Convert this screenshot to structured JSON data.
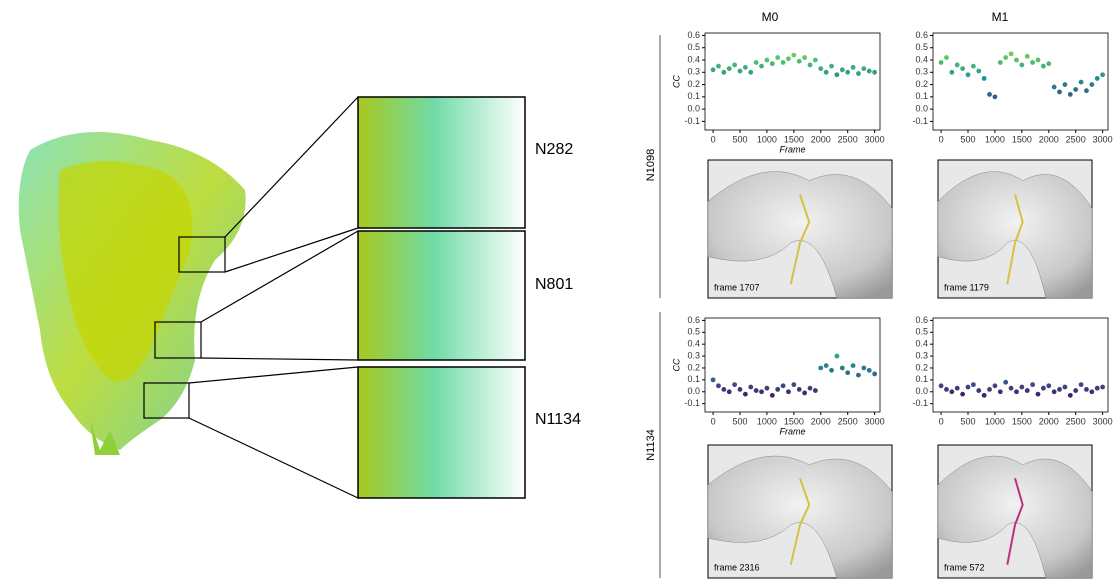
{
  "figure": {
    "column_headers": [
      "M0",
      "M1"
    ],
    "row_headers": [
      "N1098",
      "N1134"
    ],
    "sites": [
      "N282",
      "N801",
      "N1134"
    ],
    "snapshots": [
      "frame 1707",
      "frame 1179",
      "frame 2316",
      "frame 572"
    ]
  },
  "chart_data": [
    {
      "type": "scatter",
      "ylabel": "CC",
      "xlabel": "Frame",
      "colormap": "viridis",
      "clim": [
        -0.1,
        0.6
      ],
      "x": [
        0,
        100,
        200,
        300,
        400,
        500,
        600,
        700,
        800,
        900,
        1000,
        1100,
        1200,
        1300,
        1400,
        1500,
        1600,
        1700,
        1800,
        1900,
        2000,
        2100,
        2200,
        2300,
        2400,
        2500,
        2600,
        2700,
        2800,
        2900,
        3000
      ],
      "values": [
        0.32,
        0.35,
        0.3,
        0.33,
        0.36,
        0.31,
        0.34,
        0.3,
        0.38,
        0.35,
        0.4,
        0.37,
        0.42,
        0.38,
        0.41,
        0.44,
        0.39,
        0.42,
        0.36,
        0.4,
        0.33,
        0.3,
        0.35,
        0.28,
        0.32,
        0.3,
        0.34,
        0.29,
        0.33,
        0.31,
        0.3
      ],
      "xlim": [
        -150,
        3100
      ],
      "ylim": [
        -0.17,
        0.62
      ],
      "xticks": [
        0,
        500,
        1000,
        1500,
        2000,
        2500,
        3000
      ],
      "yticks": [
        {
          "value": -0.1,
          "label": "-0.1"
        },
        {
          "value": 0,
          "label": "0.0"
        },
        0.1,
        0.2,
        0.3,
        0.4,
        0.5,
        0.6
      ]
    },
    {
      "type": "scatter",
      "colormap": "viridis",
      "clim": [
        -0.1,
        0.6
      ],
      "x": [
        0,
        100,
        200,
        300,
        400,
        500,
        600,
        700,
        800,
        900,
        1000,
        1100,
        1200,
        1300,
        1400,
        1500,
        1600,
        1700,
        1800,
        1900,
        2000,
        2100,
        2200,
        2300,
        2400,
        2500,
        2600,
        2700,
        2800,
        2900,
        3000
      ],
      "values": [
        0.38,
        0.42,
        0.3,
        0.36,
        0.33,
        0.28,
        0.35,
        0.31,
        0.25,
        0.12,
        0.1,
        0.38,
        0.42,
        0.45,
        0.4,
        0.36,
        0.43,
        0.38,
        0.4,
        0.35,
        0.37,
        0.18,
        0.14,
        0.2,
        0.12,
        0.16,
        0.22,
        0.15,
        0.2,
        0.25,
        0.28
      ],
      "xlim": [
        -150,
        3100
      ],
      "ylim": [
        -0.17,
        0.62
      ],
      "xticks": [
        0,
        500,
        1000,
        1500,
        2000,
        2500,
        3000
      ],
      "yticks": [
        {
          "value": -0.1,
          "label": "-0.1"
        },
        {
          "value": 0,
          "label": "0.0"
        },
        0.1,
        0.2,
        0.3,
        0.4,
        0.5,
        0.6
      ]
    },
    {
      "type": "scatter",
      "ylabel": "CC",
      "xlabel": "Frame",
      "colormap": "viridis",
      "clim": [
        -0.1,
        0.6
      ],
      "x": [
        0,
        100,
        200,
        300,
        400,
        500,
        600,
        700,
        800,
        900,
        1000,
        1100,
        1200,
        1300,
        1400,
        1500,
        1600,
        1700,
        1800,
        1900,
        2000,
        2100,
        2200,
        2300,
        2400,
        2500,
        2600,
        2700,
        2800,
        2900,
        3000
      ],
      "values": [
        0.1,
        0.05,
        0.02,
        0.0,
        0.06,
        0.02,
        -0.02,
        0.04,
        0.01,
        0.0,
        0.03,
        -0.03,
        0.02,
        0.05,
        0.0,
        0.06,
        0.02,
        -0.01,
        0.03,
        0.01,
        0.2,
        0.22,
        0.18,
        0.3,
        0.2,
        0.16,
        0.22,
        0.14,
        0.2,
        0.18,
        0.15
      ],
      "xlim": [
        -150,
        3100
      ],
      "ylim": [
        -0.17,
        0.62
      ],
      "xticks": [
        0,
        500,
        1000,
        1500,
        2000,
        2500,
        3000
      ],
      "yticks": [
        {
          "value": -0.1,
          "label": "-0.1"
        },
        {
          "value": 0,
          "label": "0.0"
        },
        0.1,
        0.2,
        0.3,
        0.4,
        0.5,
        0.6
      ]
    },
    {
      "type": "scatter",
      "colormap": "viridis",
      "clim": [
        -0.1,
        0.6
      ],
      "x": [
        0,
        100,
        200,
        300,
        400,
        500,
        600,
        700,
        800,
        900,
        1000,
        1100,
        1200,
        1300,
        1400,
        1500,
        1600,
        1700,
        1800,
        1900,
        2000,
        2100,
        2200,
        2300,
        2400,
        2500,
        2600,
        2700,
        2800,
        2900,
        3000
      ],
      "values": [
        0.05,
        0.02,
        0.0,
        0.03,
        -0.02,
        0.04,
        0.06,
        0.01,
        -0.03,
        0.02,
        0.05,
        0.0,
        0.08,
        0.03,
        0.0,
        0.04,
        0.01,
        0.06,
        -0.02,
        0.03,
        0.05,
        0.0,
        0.02,
        0.04,
        -0.03,
        0.01,
        0.06,
        0.02,
        0.0,
        0.03,
        0.04
      ],
      "xlim": [
        -150,
        3100
      ],
      "ylim": [
        -0.17,
        0.62
      ],
      "xticks": [
        0,
        500,
        1000,
        1500,
        2000,
        2500,
        3000
      ],
      "yticks": [
        {
          "value": -0.1,
          "label": "-0.1"
        },
        {
          "value": 0,
          "label": "0.0"
        },
        0.1,
        0.2,
        0.3,
        0.4,
        0.5,
        0.6
      ]
    }
  ]
}
